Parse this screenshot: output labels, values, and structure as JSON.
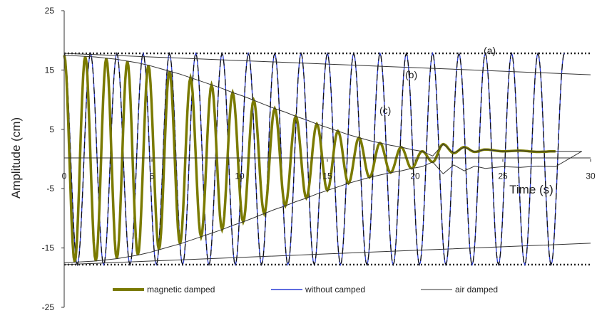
{
  "chart_data": {
    "type": "line",
    "xlabel": "Time (s)",
    "ylabel": "Amplitude (cm)",
    "xlim": [
      0,
      30
    ],
    "ylim": [
      -25,
      25
    ],
    "x_ticks": [
      "0",
      "5",
      "10",
      "15",
      "20",
      "25",
      "30"
    ],
    "y_ticks": [
      "25",
      "15",
      "5",
      "-5",
      "-15",
      "-25"
    ],
    "grid": false,
    "legend_position": "bottom",
    "series": [
      {
        "name": "magnetic damped",
        "color": "#7a7a00",
        "style": "thick solid",
        "x": [
          0,
          0.6,
          1.2,
          1.8,
          2.4,
          3.0,
          3.6,
          4.2,
          4.8,
          5.4,
          6.0,
          6.6,
          7.2,
          7.8,
          8.4,
          9.0,
          9.6,
          10.2,
          10.8,
          11.4,
          12.0,
          12.6,
          13.2,
          13.8,
          14.4,
          15.0,
          15.6,
          16.2,
          16.8,
          17.4,
          18.0,
          18.6,
          19.2,
          19.8,
          20.4,
          21.0,
          21.6,
          22.2,
          22.8,
          23.4,
          24.0,
          25.0,
          26.0,
          27.0,
          28.0
        ],
        "y": [
          17.5,
          -17.4,
          17.3,
          -17.2,
          17.0,
          -16.8,
          16.5,
          -16.2,
          15.8,
          -15.3,
          14.8,
          -14.3,
          13.7,
          -13.1,
          12.5,
          -11.9,
          11.2,
          -10.6,
          9.9,
          -9.2,
          8.5,
          -7.9,
          7.2,
          -6.6,
          5.9,
          -5.3,
          4.7,
          -4.1,
          3.6,
          -3.1,
          2.7,
          -2.3,
          2.0,
          -1.6,
          1.3,
          -0.5,
          2.5,
          1.0,
          2.0,
          1.2,
          1.6,
          1.3,
          1.4,
          1.2,
          1.3
        ]
      },
      {
        "name": "without camped",
        "color": "#2a3bd6",
        "style": "solid",
        "x": [
          0,
          0.75,
          1.5,
          2.25,
          3.0,
          3.75,
          4.5,
          5.25,
          6.0,
          6.75,
          7.5,
          8.25,
          9.0,
          9.75,
          10.5,
          11.25,
          12.0,
          12.75,
          13.5,
          14.25,
          15.0,
          15.75,
          16.5,
          17.25,
          18.0,
          18.75,
          19.5,
          20.25,
          21.0,
          21.75,
          22.5,
          23.25,
          24.0,
          24.75,
          25.5,
          26.25,
          27.0,
          27.75,
          28.5
        ],
        "y": [
          17.8,
          -17.8,
          17.8,
          -17.8,
          17.8,
          -17.8,
          17.8,
          -17.8,
          17.8,
          -17.8,
          17.8,
          -17.8,
          17.8,
          -17.8,
          17.8,
          -17.8,
          17.8,
          -17.8,
          17.8,
          -17.8,
          17.8,
          -17.8,
          17.8,
          -17.8,
          17.8,
          -17.8,
          17.8,
          -17.8,
          17.8,
          -17.8,
          17.8,
          -17.8,
          17.8,
          -17.8,
          17.8,
          -17.8,
          17.8,
          -17.8,
          17.8
        ]
      },
      {
        "name": "air damped",
        "color": "#333333",
        "style": "thin solid",
        "x": [
          0,
          5,
          10,
          15,
          20,
          25,
          30
        ],
        "y": [
          17.8,
          17.2,
          16.6,
          16.0,
          15.4,
          14.8,
          14.2
        ]
      }
    ],
    "annotations": [
      "(a)",
      "(b)",
      "(c)"
    ]
  },
  "legend": {
    "magnetic_label": "magnetic damped",
    "without_label": "without camped",
    "air_label": "air damped"
  }
}
